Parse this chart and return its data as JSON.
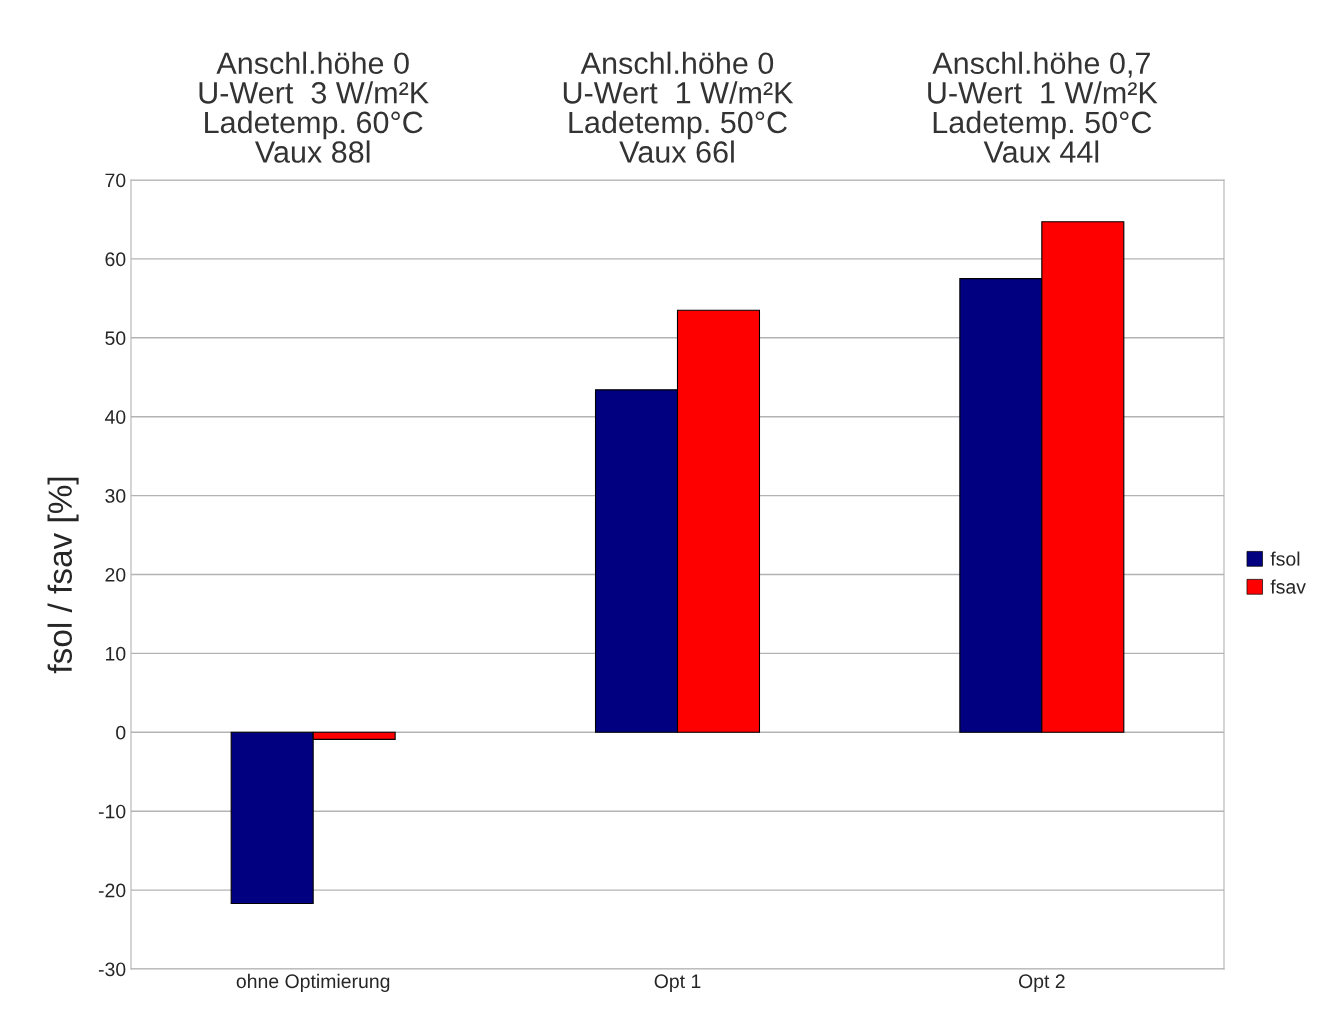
{
  "chart_data": {
    "type": "bar",
    "ylabel": "fsol / fsav [%]",
    "categories": [
      "ohne Optimierung",
      "Opt 1",
      "Opt 2"
    ],
    "series": [
      {
        "name": "fsol",
        "color": "#000080",
        "values": [
          -21.7,
          43.4,
          57.5
        ]
      },
      {
        "name": "fsav",
        "color": "#ff0000",
        "values": [
          -0.9,
          53.5,
          64.7
        ]
      }
    ],
    "annotations": [
      "Anschl.höhe 0\nU-Wert  3 W/m²K\nLadetemp. 60°C\nVaux 88l",
      "Anschl.höhe 0\nU-Wert  1 W/m²K\nLadetemp. 50°C\nVaux 66l",
      "Anschl.höhe 0,7\nU-Wert  1 W/m²K\nLadetemp. 50°C\nVaux 44l"
    ],
    "ylim": [
      -30,
      70
    ],
    "yticks": [
      -30,
      -20,
      -10,
      0,
      10,
      20,
      30,
      40,
      50,
      60,
      70
    ],
    "grid": "y",
    "legend": "right"
  }
}
